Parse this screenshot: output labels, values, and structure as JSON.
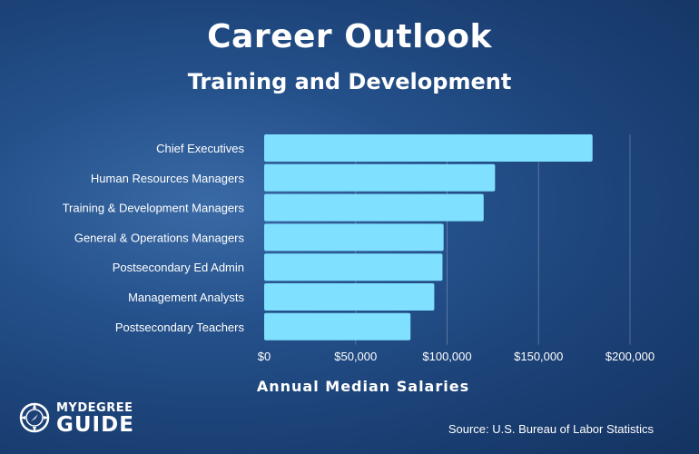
{
  "header": {
    "title": "Career Outlook",
    "subtitle": "Training and Development"
  },
  "logo": {
    "line1": "MYDEGREE",
    "line2": "GUIDE"
  },
  "source": "Source: U.S. Bureau of Labor Statistics",
  "colors": {
    "bar": "#7fe0ff",
    "background": "#1f4a82",
    "text": "#ffffff"
  },
  "chart_data": {
    "type": "bar",
    "orientation": "horizontal",
    "categories": [
      "Chief Executives",
      "Human Resources Managers",
      "Training & Development Managers",
      "General & Operations Managers",
      "Postsecondary Ed Admin",
      "Management Analysts",
      "Postsecondary Teachers"
    ],
    "values": [
      179520,
      126230,
      120000,
      98100,
      97500,
      93000,
      80000
    ],
    "title": "Career Outlook",
    "subtitle": "Training and Development",
    "xlabel": "Annual Median Salaries",
    "ylabel": "",
    "xlim": [
      0,
      200000
    ],
    "xticks": [
      0,
      50000,
      100000,
      150000,
      200000
    ],
    "xtick_labels": [
      "$0",
      "$50,000",
      "$100,000",
      "$150,000",
      "$200,000"
    ],
    "grid": true,
    "legend": "none"
  }
}
